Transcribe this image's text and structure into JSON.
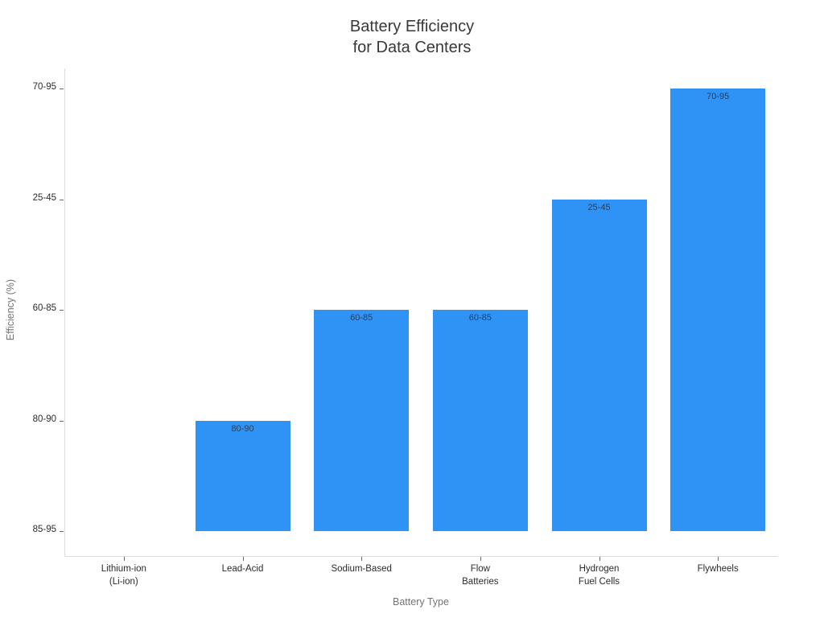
{
  "chart_data": {
    "type": "bar",
    "title": "Battery Efficiency for Data Centers",
    "title_lines": [
      "Battery Efficiency",
      "for Data Centers"
    ],
    "xlabel": "Battery Type",
    "ylabel": "Efficiency (%)",
    "x_axis_type": "category",
    "y_axis_type": "category",
    "y_categories_bottom_to_top": [
      "85-95",
      "80-90",
      "60-85",
      "25-45",
      "70-95"
    ],
    "categories": [
      "Lithium-ion (Li-ion)",
      "Lead-Acid",
      "Sodium-Based",
      "Flow Batteries",
      "Hydrogen Fuel Cells",
      "Flywheels"
    ],
    "category_label_lines": [
      [
        "Lithium-ion",
        "(Li-ion)"
      ],
      [
        "Lead-Acid"
      ],
      [
        "Sodium-Based"
      ],
      [
        "Flow",
        "Batteries"
      ],
      [
        "Hydrogen",
        "Fuel Cells"
      ],
      [
        "Flywheels"
      ]
    ],
    "values": [
      "85-95",
      "80-90",
      "60-85",
      "60-85",
      "25-45",
      "70-95"
    ],
    "bar_labels": [
      "",
      "80-90",
      "60-85",
      "60-85",
      "25-45",
      "70-95"
    ],
    "bar_color": "#2e93f5",
    "bar_label_color": "#2a3f5f",
    "axis_line_color": "#dcdcdc",
    "grid": false,
    "legend": "none"
  }
}
